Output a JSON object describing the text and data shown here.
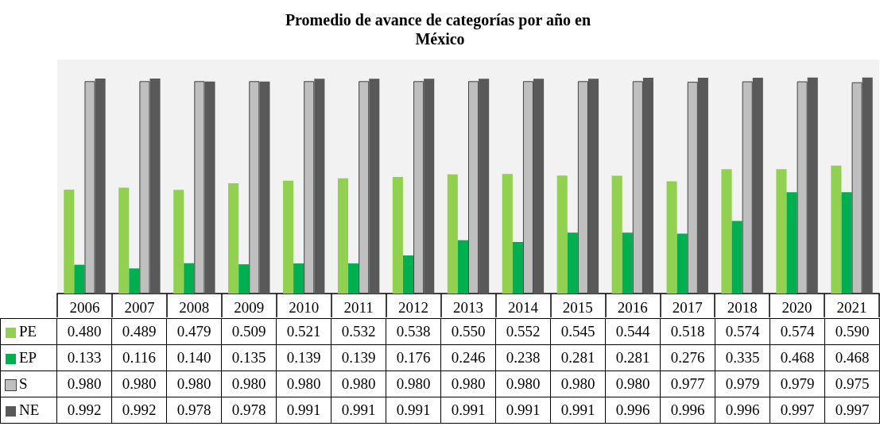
{
  "chart_data": {
    "type": "bar",
    "title": "Promedio de avance de categorías por año en México",
    "categories": [
      "2006",
      "2007",
      "2008",
      "2009",
      "2010",
      "2011",
      "2012",
      "2013",
      "2014",
      "2015",
      "2016",
      "2017",
      "2018",
      "2020",
      "2021"
    ],
    "series": [
      {
        "name": "PE",
        "color": "#92d050",
        "values": [
          0.48,
          0.489,
          0.479,
          0.509,
          0.521,
          0.532,
          0.538,
          0.55,
          0.552,
          0.545,
          0.544,
          0.518,
          0.574,
          0.574,
          0.59
        ],
        "value_labels": [
          "0.480",
          "0.489",
          "0.479",
          "0.509",
          "0.521",
          "0.532",
          "0.538",
          "0.550",
          "0.552",
          "0.545",
          "0.544",
          "0.518",
          "0.574",
          "0.574",
          "0.590"
        ]
      },
      {
        "name": "EP",
        "color": "#00b050",
        "values": [
          0.133,
          0.116,
          0.14,
          0.135,
          0.139,
          0.139,
          0.176,
          0.246,
          0.238,
          0.281,
          0.281,
          0.276,
          0.335,
          0.468,
          0.468
        ],
        "value_labels": [
          "0.133",
          "0.116",
          "0.140",
          "0.135",
          "0.139",
          "0.139",
          "0.176",
          "0.246",
          "0.238",
          "0.281",
          "0.281",
          "0.276",
          "0.335",
          "0.468",
          "0.468"
        ]
      },
      {
        "name": "S",
        "color": "#bfbfbf",
        "values": [
          0.98,
          0.98,
          0.98,
          0.98,
          0.98,
          0.98,
          0.98,
          0.98,
          0.98,
          0.98,
          0.98,
          0.977,
          0.979,
          0.979,
          0.975
        ],
        "value_labels": [
          "0.980",
          "0.980",
          "0.980",
          "0.980",
          "0.980",
          "0.980",
          "0.980",
          "0.980",
          "0.980",
          "0.980",
          "0.980",
          "0.977",
          "0.979",
          "0.979",
          "0.975"
        ]
      },
      {
        "name": "NE",
        "color": "#595959",
        "values": [
          0.992,
          0.992,
          0.978,
          0.978,
          0.991,
          0.991,
          0.991,
          0.991,
          0.991,
          0.991,
          0.996,
          0.996,
          0.996,
          0.997,
          0.997
        ],
        "value_labels": [
          "0.992",
          "0.992",
          "0.978",
          "0.978",
          "0.991",
          "0.991",
          "0.991",
          "0.991",
          "0.991",
          "0.991",
          "0.996",
          "0.996",
          "0.996",
          "0.997",
          "0.997"
        ]
      }
    ],
    "ylim": [
      0,
      1.08
    ],
    "tick_labels": "x",
    "legend": "bottom"
  }
}
